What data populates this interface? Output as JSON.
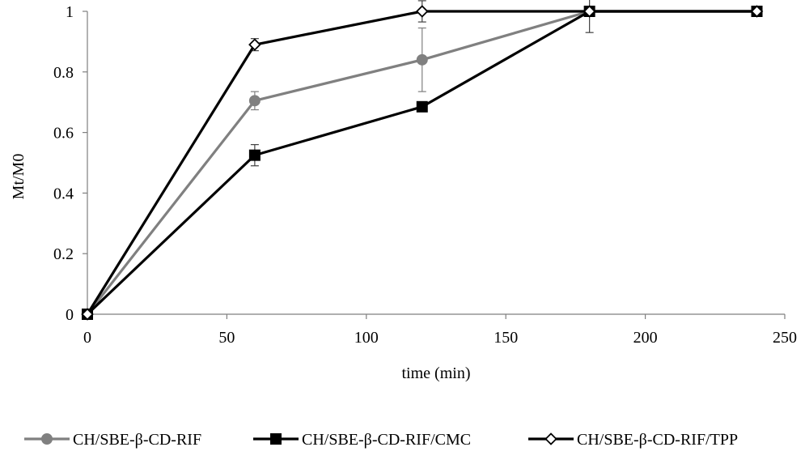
{
  "chart_data": {
    "type": "line",
    "xlabel": "time (min)",
    "ylabel": "Mt/M0",
    "xlim": [
      0,
      250
    ],
    "ylim": [
      0,
      1
    ],
    "x_ticks": [
      0,
      50,
      100,
      150,
      200,
      250
    ],
    "y_ticks": [
      0,
      0.2,
      0.4,
      0.6,
      0.8,
      1
    ],
    "x_tick_labels": [
      "0",
      "50",
      "100",
      "150",
      "200",
      "250"
    ],
    "y_tick_labels": [
      "0",
      "0.2",
      "0.4",
      "0.6",
      "0.8",
      "1"
    ],
    "grid": false,
    "legend_position": "bottom",
    "series": [
      {
        "name": "CH/SBE-β-CD-RIF",
        "color": "#808080",
        "marker": "circle",
        "x": [
          0,
          60,
          120,
          180,
          240
        ],
        "y": [
          0,
          0.705,
          0.84,
          1.0,
          1.0
        ],
        "error": [
          0,
          0.03,
          0.105,
          0.0,
          0.0
        ]
      },
      {
        "name": "CH/SBE-β-CD-RIF/CMC",
        "color": "#000000",
        "marker": "square",
        "x": [
          0,
          60,
          120,
          180,
          240
        ],
        "y": [
          0,
          0.525,
          0.685,
          1.0,
          1.0
        ],
        "error": [
          0,
          0.035,
          0.0,
          0.07,
          0.0
        ]
      },
      {
        "name": "CH/SBE-β-CD-RIF/TPP",
        "color": "#000000",
        "marker": "diamond",
        "x": [
          0,
          60,
          120,
          180,
          240
        ],
        "y": [
          0,
          0.89,
          1.0,
          1.0,
          1.0
        ],
        "error": [
          0,
          0.02,
          0.035,
          0.0,
          0.0
        ]
      }
    ]
  }
}
